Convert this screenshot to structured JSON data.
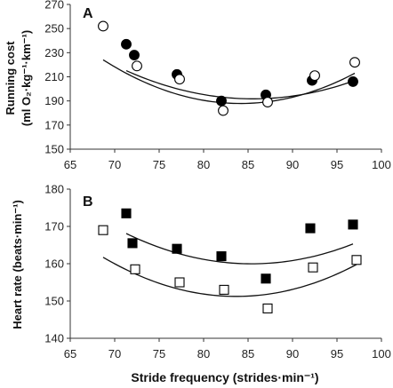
{
  "chart_data": [
    {
      "type": "scatter",
      "panel_label": "A",
      "ylabel_lines": [
        "Running cost",
        "(ml O₂·kg⁻¹·km⁻¹)"
      ],
      "xlabel": "",
      "xlim": [
        65,
        100
      ],
      "ylim": [
        150,
        270
      ],
      "xticks": [
        "65",
        "70",
        "75",
        "80",
        "85",
        "90",
        "95",
        "100"
      ],
      "yticks": [
        "150",
        "170",
        "190",
        "210",
        "230",
        "250",
        "270"
      ],
      "series": [
        {
          "marker": "filled-circle",
          "points": [
            [
              71.3,
              237
            ],
            [
              72.2,
              228
            ],
            [
              77.0,
              212
            ],
            [
              82.0,
              190
            ],
            [
              87.0,
              195
            ],
            [
              92.2,
              207
            ],
            [
              96.8,
              206
            ]
          ],
          "fit": [
            0.1154,
            -19.74,
            1035.9
          ]
        },
        {
          "marker": "open-circle",
          "points": [
            [
              68.7,
              252
            ],
            [
              72.5,
              219
            ],
            [
              77.3,
              208
            ],
            [
              82.2,
              182
            ],
            [
              87.2,
              189
            ],
            [
              92.5,
              211
            ],
            [
              97.0,
              222
            ]
          ],
          "fit": [
            0.1517,
            -25.53,
            1262.0
          ]
        }
      ]
    },
    {
      "type": "scatter",
      "panel_label": "B",
      "ylabel_lines": [
        "Heart rate (beats·min⁻¹)"
      ],
      "xlabel": "Stride frequency  (strides·min⁻¹)",
      "xlim": [
        65,
        100
      ],
      "ylim": [
        140,
        180
      ],
      "xticks": [
        "65",
        "70",
        "75",
        "80",
        "85",
        "90",
        "95",
        "100"
      ],
      "yticks": [
        "140",
        "150",
        "160",
        "170",
        "180"
      ],
      "series": [
        {
          "marker": "filled-square",
          "points": [
            [
              71.3,
              173.5
            ],
            [
              72.0,
              165.5
            ],
            [
              77.0,
              164
            ],
            [
              82.0,
              162
            ],
            [
              87.0,
              156
            ],
            [
              92.0,
              169.5
            ],
            [
              96.8,
              170.5
            ]
          ],
          "fit": [
            0.0409,
            -6.985,
            458.2
          ]
        },
        {
          "marker": "open-square",
          "points": [
            [
              68.7,
              169
            ],
            [
              72.3,
              158.5
            ],
            [
              77.3,
              155
            ],
            [
              82.3,
              153
            ],
            [
              87.2,
              148
            ],
            [
              92.3,
              159
            ],
            [
              97.2,
              161
            ]
          ],
          "fit": [
            0.0468,
            -7.832,
            478.9
          ]
        }
      ]
    }
  ]
}
